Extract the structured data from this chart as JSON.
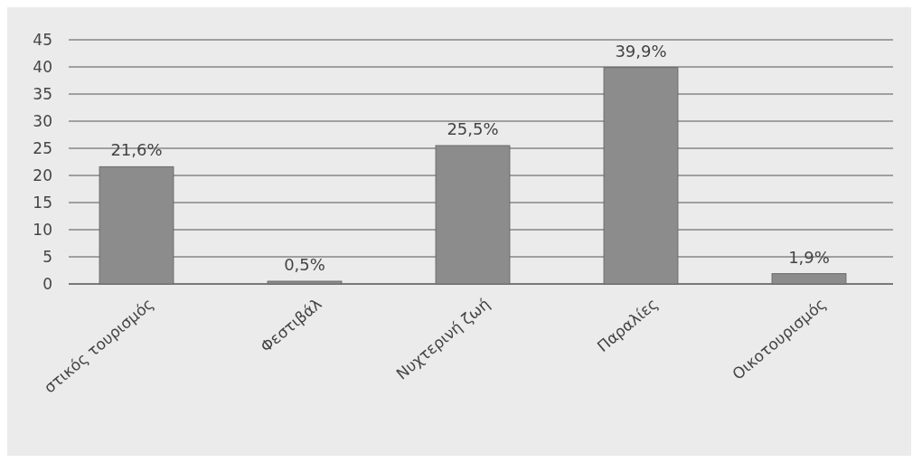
{
  "chart_data": {
    "type": "bar",
    "categories": [
      "στικός τουρισμός",
      "Φεστιβάλ",
      "Νυχτερινή ζωή",
      "Παραλίες",
      "Οικοτουρισμός"
    ],
    "values": [
      21.6,
      0.5,
      25.5,
      39.9,
      1.9
    ],
    "value_labels": [
      "21,6%",
      "0,5%",
      "25,5%",
      "39,9%",
      "1,9%"
    ],
    "color": "#8c8c8c",
    "ylim": [
      0,
      45
    ],
    "yticks": [
      0,
      5,
      10,
      15,
      20,
      25,
      30,
      35,
      40,
      45
    ],
    "grid": "y"
  }
}
